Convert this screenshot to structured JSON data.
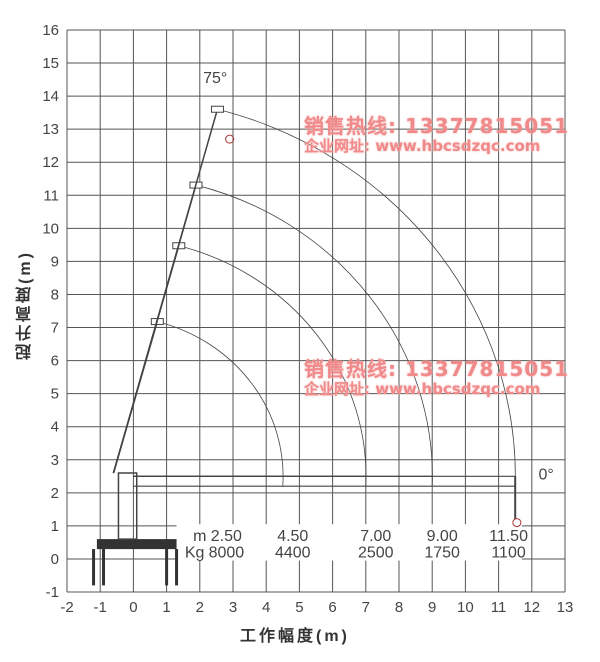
{
  "axes": {
    "x_label": "工作幅度(m)",
    "y_label": "起升高度(m)",
    "x_range": [
      -2,
      13
    ],
    "y_range": [
      -1,
      16
    ],
    "grid": true
  },
  "angle_labels": {
    "max": "75°",
    "min": "0°"
  },
  "load_table": {
    "radius_unit": "m",
    "load_unit": "Kg",
    "radius": [
      "2.50",
      "4.50",
      "7.00",
      "9.00",
      "11.50"
    ],
    "load": [
      "8000",
      "4400",
      "2500",
      "1750",
      "1100"
    ]
  },
  "boom_reach_at_0deg": [
    4.5,
    7.0,
    9.0,
    11.5
  ],
  "watermark": {
    "line1": "销售热线: 13377815051",
    "line2": "企业网址: www.hbcsdzqc.com",
    "color": "#f08a8a"
  },
  "colors": {
    "grid": "#555555",
    "lines": "#444444"
  }
}
